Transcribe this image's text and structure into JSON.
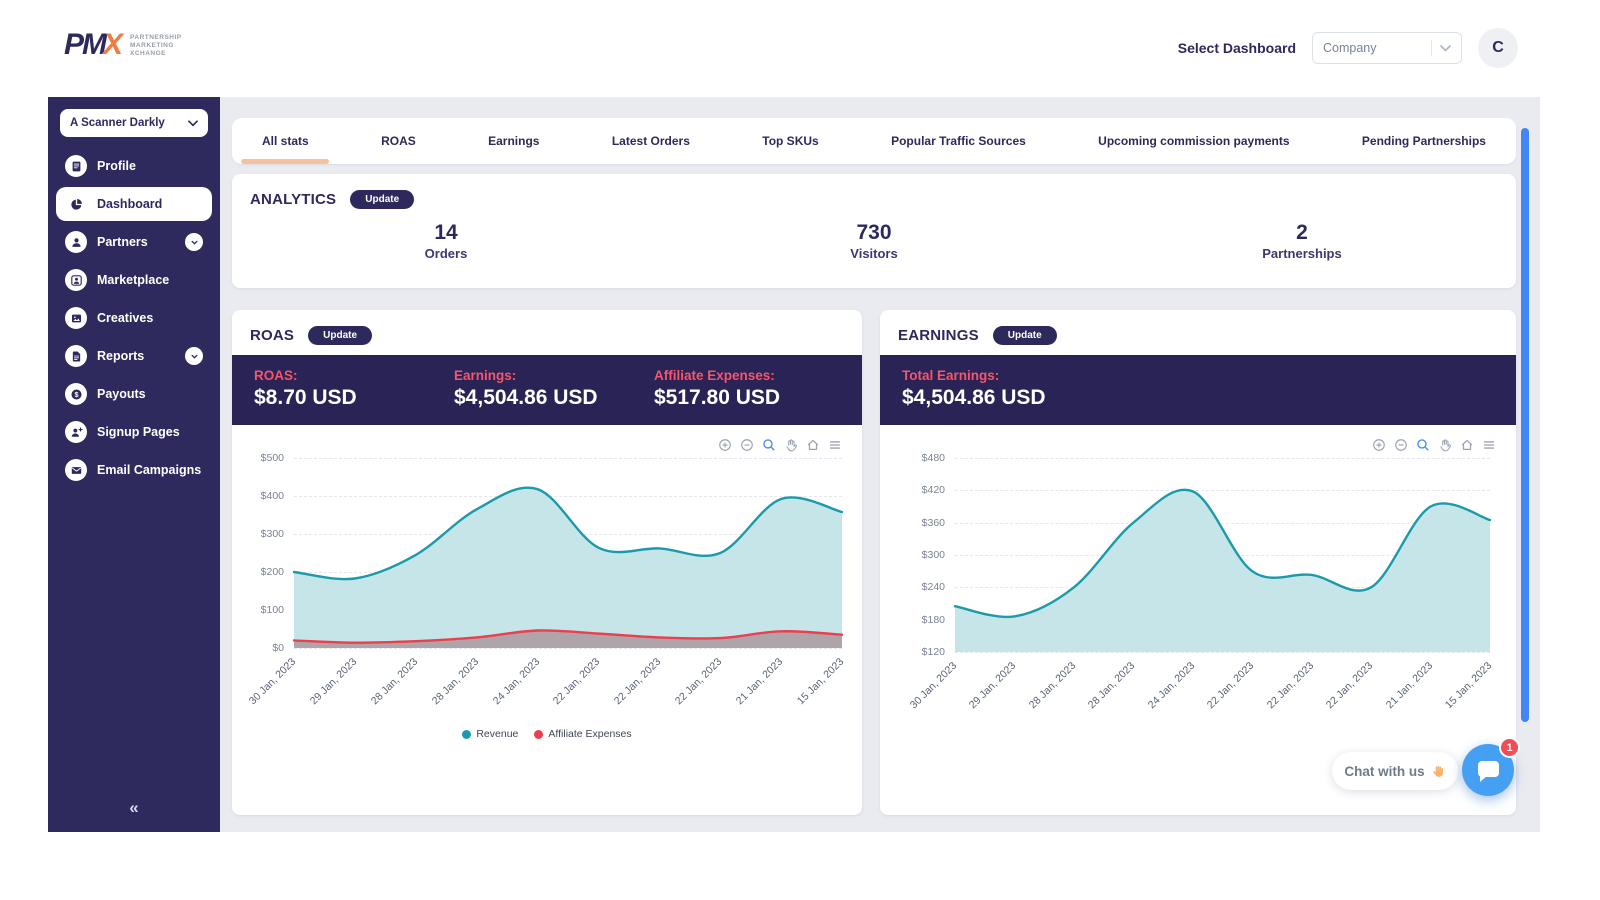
{
  "header": {
    "logo": {
      "pm": "PM",
      "x": "X",
      "tagline": [
        "PARTNERSHIP",
        "MARKETING",
        "XCHANGE"
      ]
    },
    "select_dashboard_label": "Select Dashboard",
    "dashboard_select_value": "Company",
    "avatar_initial": "C"
  },
  "sidebar": {
    "project_select_value": "A Scanner Darkly",
    "items": [
      {
        "label": "Profile",
        "icon": "journal-icon",
        "active": false,
        "expandable": false
      },
      {
        "label": "Dashboard",
        "icon": "pie-chart-icon",
        "active": true,
        "expandable": false
      },
      {
        "label": "Partners",
        "icon": "person-icon",
        "active": false,
        "expandable": true
      },
      {
        "label": "Marketplace",
        "icon": "storefront-person-icon",
        "active": false,
        "expandable": false
      },
      {
        "label": "Creatives",
        "icon": "image-card-icon",
        "active": false,
        "expandable": false
      },
      {
        "label": "Reports",
        "icon": "document-icon",
        "active": false,
        "expandable": true
      },
      {
        "label": "Payouts",
        "icon": "dollar-circle-icon",
        "active": false,
        "expandable": false
      },
      {
        "label": "Signup Pages",
        "icon": "person-plus-icon",
        "active": false,
        "expandable": false
      },
      {
        "label": "Email Campaigns",
        "icon": "envelope-icon",
        "active": false,
        "expandable": false
      }
    ],
    "collapse_icon": "«"
  },
  "tabs": [
    "All stats",
    "ROAS",
    "Earnings",
    "Latest Orders",
    "Top SKUs",
    "Popular Traffic Sources",
    "Upcoming commission payments",
    "Pending Partnerships"
  ],
  "active_tab": "All stats",
  "analytics": {
    "title": "ANALYTICS",
    "update_label": "Update",
    "stats": [
      {
        "value": "14",
        "label": "Orders"
      },
      {
        "value": "730",
        "label": "Visitors"
      },
      {
        "value": "2",
        "label": "Partnerships"
      }
    ]
  },
  "roas_panel": {
    "title": "ROAS",
    "update_label": "Update",
    "stats": [
      {
        "label": "ROAS:",
        "value": "$8.70 USD"
      },
      {
        "label": "Earnings:",
        "value": "$4,504.86 USD"
      },
      {
        "label": "Affiliate Expenses:",
        "value": "$517.80 USD"
      }
    ]
  },
  "earnings_panel": {
    "title": "EARNINGS",
    "update_label": "Update",
    "stats": [
      {
        "label": "Total Earnings:",
        "value": "$4,504.86 USD"
      }
    ]
  },
  "chart_toolbar": [
    "zoom-in-icon",
    "zoom-out-icon",
    "zoom-box-icon",
    "pan-icon",
    "home-icon",
    "menu-icon"
  ],
  "chart_data": [
    {
      "type": "area",
      "panel": "ROAS",
      "x": [
        "30 Jan, 2023",
        "29 Jan, 2023",
        "28 Jan, 2023",
        "28 Jan, 2023",
        "24 Jan, 2023",
        "22 Jan, 2023",
        "22 Jan, 2023",
        "22 Jan, 2023",
        "21 Jan, 2023",
        "15 Jan, 2023"
      ],
      "series": [
        {
          "name": "Revenue",
          "color": "#1b9aaa",
          "fill": "#c6e5e9",
          "fill_opacity": 1,
          "values": [
            200,
            183,
            245,
            365,
            418,
            264,
            262,
            250,
            392,
            358
          ]
        },
        {
          "name": "Affiliate Expenses",
          "color": "#ee3d4d",
          "fill": "#8c4a52",
          "fill_opacity": 0.42,
          "values": [
            20,
            14,
            18,
            28,
            46,
            38,
            28,
            26,
            44,
            35
          ]
        }
      ],
      "ylim": [
        0,
        500
      ],
      "yticks": [
        0,
        100,
        200,
        300,
        400,
        500
      ],
      "y_prefix": "$",
      "grid": "dashed",
      "legend": true,
      "legend_position": "bottom"
    },
    {
      "type": "area",
      "panel": "EARNINGS",
      "x": [
        "30 Jan, 2023",
        "29 Jan, 2023",
        "28 Jan, 2023",
        "28 Jan, 2023",
        "24 Jan, 2023",
        "22 Jan, 2023",
        "22 Jan, 2023",
        "22 Jan, 2023",
        "21 Jan, 2023",
        "15 Jan, 2023"
      ],
      "series": [
        {
          "name": "Earnings",
          "color": "#1b9aaa",
          "fill": "#c6e5e9",
          "fill_opacity": 1,
          "values": [
            205,
            186,
            240,
            360,
            418,
            270,
            263,
            240,
            390,
            365
          ]
        }
      ],
      "ylim": [
        120,
        480
      ],
      "yticks": [
        120,
        180,
        240,
        300,
        360,
        420,
        480
      ],
      "y_prefix": "$",
      "grid": "dashed",
      "legend": false
    }
  ],
  "chat": {
    "label": "Chat with us",
    "hand_icon": "waving-hand-icon",
    "badge": "1"
  },
  "colors": {
    "sidebar_bg": "#2f2a5e",
    "strip_bg": "#2a2356",
    "navy_text": "#2e295c",
    "accent_orange": "#f07c41",
    "tab_underline": "#f5c29e",
    "stat_label_pink": "#f5566c",
    "teal_line": "#1b9aaa",
    "red_line": "#ee3d4d",
    "chat_blue": "#459ff3",
    "scrollbar_blue": "#4285f4",
    "badge_red": "#f44b57"
  }
}
